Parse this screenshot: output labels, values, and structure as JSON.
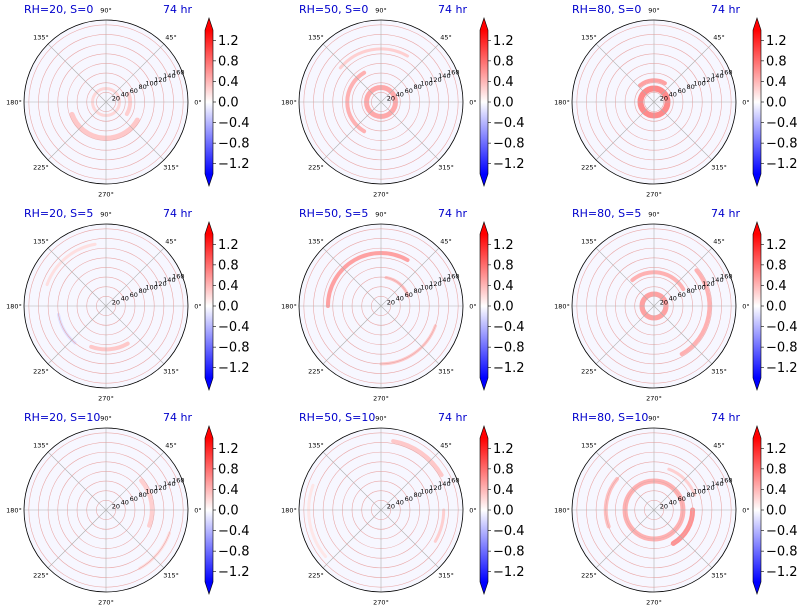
{
  "figure": {
    "colormap": "bwr",
    "colors": {
      "positive": "#ff0000",
      "negative": "#0000ff",
      "title": "#0000cc",
      "grid": "#b0b0b0",
      "frame": "#000000"
    }
  },
  "chart_data": [
    {
      "type": "heatmap",
      "projection": "polar",
      "title_left": "RH=20, S=0",
      "title_right": "74 hr",
      "theta_ticks": [
        "0°",
        "45°",
        "90°",
        "135°",
        "180°",
        "225°",
        "270°",
        "315°"
      ],
      "r_ticks": [
        "20",
        "40",
        "60",
        "80",
        "100",
        "120",
        "140",
        "160"
      ],
      "r_tick_values": [
        20,
        40,
        60,
        80,
        100,
        120,
        140,
        160
      ],
      "rlim": [
        0,
        170
      ],
      "colorbar": {
        "ticks": [
          "1.2",
          "0.8",
          "0.4",
          "0.0",
          "−0.4",
          "−0.8",
          "−1.2"
        ],
        "tick_values": [
          1.2,
          0.8,
          0.4,
          0.0,
          -0.4,
          -0.8,
          -1.2
        ],
        "clim": [
          -1.4,
          1.4
        ],
        "extend": "both"
      },
      "features": [
        {
          "theta_deg_start": 200,
          "theta_deg_end": 330,
          "r": 75,
          "value": 0.35,
          "width": 5
        },
        {
          "theta_deg_start": 330,
          "theta_deg_end": 380,
          "r": 50,
          "value": 0.3,
          "width": 4
        },
        {
          "theta_deg_start": 0,
          "theta_deg_end": 360,
          "r": 28,
          "value": 0.25,
          "width": 3
        }
      ]
    },
    {
      "type": "heatmap",
      "projection": "polar",
      "title_left": "RH=50, S=0",
      "title_right": "74 hr",
      "theta_ticks": [
        "0°",
        "45°",
        "90°",
        "135°",
        "180°",
        "225°",
        "270°",
        "315°"
      ],
      "r_ticks": [
        "20",
        "40",
        "60",
        "80",
        "100",
        "120",
        "140",
        "160"
      ],
      "r_tick_values": [
        20,
        40,
        60,
        80,
        100,
        120,
        140,
        160
      ],
      "rlim": [
        0,
        170
      ],
      "colorbar": {
        "ticks": [
          "1.2",
          "0.8",
          "0.4",
          "0.0",
          "−0.4",
          "−0.8",
          "−1.2"
        ],
        "tick_values": [
          1.2,
          0.8,
          0.4,
          0.0,
          -0.4,
          -0.8,
          -1.2
        ],
        "clim": [
          -1.4,
          1.4
        ],
        "extend": "both"
      },
      "features": [
        {
          "theta_deg_start": 0,
          "theta_deg_end": 360,
          "r": 30,
          "value": 0.55,
          "width": 5
        },
        {
          "theta_deg_start": 120,
          "theta_deg_end": 240,
          "r": 70,
          "value": 0.5,
          "width": 4
        },
        {
          "theta_deg_start": 60,
          "theta_deg_end": 140,
          "r": 110,
          "value": 0.3,
          "width": 3
        }
      ]
    },
    {
      "type": "heatmap",
      "projection": "polar",
      "title_left": "RH=80, S=0",
      "title_right": "74 hr",
      "theta_ticks": [
        "0°",
        "45°",
        "90°",
        "135°",
        "180°",
        "225°",
        "270°",
        "315°"
      ],
      "r_ticks": [
        "20",
        "40",
        "60",
        "80",
        "100",
        "120",
        "140",
        "160"
      ],
      "r_tick_values": [
        20,
        40,
        60,
        80,
        100,
        120,
        140,
        160
      ],
      "rlim": [
        0,
        170
      ],
      "colorbar": {
        "ticks": [
          "1.2",
          "0.8",
          "0.4",
          "0.0",
          "−0.4",
          "−0.8",
          "−1.2"
        ],
        "tick_values": [
          1.2,
          0.8,
          0.4,
          0.0,
          -0.4,
          -0.8,
          -1.2
        ],
        "clim": [
          -1.4,
          1.4
        ],
        "extend": "both"
      },
      "features": [
        {
          "theta_deg_start": 0,
          "theta_deg_end": 360,
          "r": 28,
          "value": 0.75,
          "width": 6
        },
        {
          "theta_deg_start": 60,
          "theta_deg_end": 130,
          "r": 45,
          "value": 0.6,
          "width": 4
        }
      ]
    },
    {
      "type": "heatmap",
      "projection": "polar",
      "title_left": "RH=20, S=5",
      "title_right": "74 hr",
      "theta_ticks": [
        "0°",
        "45°",
        "90°",
        "135°",
        "180°",
        "225°",
        "270°",
        "315°"
      ],
      "r_ticks": [
        "20",
        "40",
        "60",
        "80",
        "100",
        "120",
        "140",
        "160"
      ],
      "r_tick_values": [
        20,
        40,
        60,
        80,
        100,
        120,
        140,
        160
      ],
      "rlim": [
        0,
        170
      ],
      "colorbar": {
        "ticks": [
          "1.2",
          "0.8",
          "0.4",
          "0.0",
          "−0.4",
          "−0.8",
          "−1.2"
        ],
        "tick_values": [
          1.2,
          0.8,
          0.4,
          0.0,
          -0.4,
          -0.8,
          -1.2
        ],
        "clim": [
          -1.4,
          1.4
        ],
        "extend": "both"
      },
      "features": [
        {
          "theta_deg_start": 250,
          "theta_deg_end": 300,
          "r": 90,
          "value": 0.35,
          "width": 4
        },
        {
          "theta_deg_start": 100,
          "theta_deg_end": 160,
          "r": 130,
          "value": 0.2,
          "width": 3
        },
        {
          "theta_deg_start": 190,
          "theta_deg_end": 230,
          "r": 100,
          "value": -0.2,
          "width": 3
        }
      ]
    },
    {
      "type": "heatmap",
      "projection": "polar",
      "title_left": "RH=50, S=5",
      "title_right": "74 hr",
      "theta_ticks": [
        "0°",
        "45°",
        "90°",
        "135°",
        "180°",
        "225°",
        "270°",
        "315°"
      ],
      "r_ticks": [
        "20",
        "40",
        "60",
        "80",
        "100",
        "120",
        "140",
        "160"
      ],
      "r_tick_values": [
        20,
        40,
        60,
        80,
        100,
        120,
        140,
        160
      ],
      "rlim": [
        0,
        170
      ],
      "colorbar": {
        "ticks": [
          "1.2",
          "0.8",
          "0.4",
          "0.0",
          "−0.4",
          "−0.8",
          "−1.2"
        ],
        "tick_values": [
          1.2,
          0.8,
          0.4,
          0.0,
          -0.4,
          -0.8,
          -1.2
        ],
        "clim": [
          -1.4,
          1.4
        ],
        "extend": "both"
      },
      "features": [
        {
          "theta_deg_start": 60,
          "theta_deg_end": 180,
          "r": 110,
          "value": 0.6,
          "width": 4
        },
        {
          "theta_deg_start": 20,
          "theta_deg_end": 80,
          "r": 60,
          "value": 0.4,
          "width": 3
        },
        {
          "theta_deg_start": 270,
          "theta_deg_end": 340,
          "r": 120,
          "value": 0.35,
          "width": 3
        }
      ]
    },
    {
      "type": "heatmap",
      "projection": "polar",
      "title_left": "RH=80, S=5",
      "title_right": "74 hr",
      "theta_ticks": [
        "0°",
        "45°",
        "90°",
        "135°",
        "180°",
        "225°",
        "270°",
        "315°"
      ],
      "r_ticks": [
        "20",
        "40",
        "60",
        "80",
        "100",
        "120",
        "140",
        "160"
      ],
      "r_tick_values": [
        20,
        40,
        60,
        80,
        100,
        120,
        140,
        160
      ],
      "rlim": [
        0,
        170
      ],
      "colorbar": {
        "ticks": [
          "1.2",
          "0.8",
          "0.4",
          "0.0",
          "−0.4",
          "−0.8",
          "−1.2"
        ],
        "tick_values": [
          1.2,
          0.8,
          0.4,
          0.0,
          -0.4,
          -0.8,
          -1.2
        ],
        "clim": [
          -1.4,
          1.4
        ],
        "extend": "both"
      },
      "features": [
        {
          "theta_deg_start": 0,
          "theta_deg_end": 360,
          "r": 25,
          "value": 0.6,
          "width": 5
        },
        {
          "theta_deg_start": 30,
          "theta_deg_end": 130,
          "r": 70,
          "value": 0.5,
          "width": 4
        },
        {
          "theta_deg_start": 300,
          "theta_deg_end": 400,
          "r": 115,
          "value": 0.5,
          "width": 4
        }
      ]
    },
    {
      "type": "heatmap",
      "projection": "polar",
      "title_left": "RH=20, S=10",
      "title_right": "74 hr",
      "theta_ticks": [
        "0°",
        "45°",
        "90°",
        "135°",
        "180°",
        "225°",
        "270°",
        "315°"
      ],
      "r_ticks": [
        "20",
        "40",
        "60",
        "80",
        "100",
        "120",
        "140",
        "160"
      ],
      "r_tick_values": [
        20,
        40,
        60,
        80,
        100,
        120,
        140,
        160
      ],
      "rlim": [
        0,
        170
      ],
      "colorbar": {
        "ticks": [
          "1.2",
          "0.8",
          "0.4",
          "0.0",
          "−0.4",
          "−0.8",
          "−1.2"
        ],
        "tick_values": [
          1.2,
          0.8,
          0.4,
          0.0,
          -0.4,
          -0.8,
          -1.2
        ],
        "clim": [
          -1.4,
          1.4
        ],
        "extend": "both"
      },
      "features": [
        {
          "theta_deg_start": 340,
          "theta_deg_end": 400,
          "r": 95,
          "value": 0.3,
          "width": 4
        },
        {
          "theta_deg_start": 300,
          "theta_deg_end": 340,
          "r": 140,
          "value": 0.2,
          "width": 3
        }
      ]
    },
    {
      "type": "heatmap",
      "projection": "polar",
      "title_left": "RH=50, S=10",
      "title_right": "74 hr",
      "theta_ticks": [
        "0°",
        "45°",
        "90°",
        "135°",
        "180°",
        "225°",
        "270°",
        "315°"
      ],
      "r_ticks": [
        "20",
        "40",
        "60",
        "80",
        "100",
        "120",
        "140",
        "160"
      ],
      "r_tick_values": [
        20,
        40,
        60,
        80,
        100,
        120,
        140,
        160
      ],
      "rlim": [
        0,
        170
      ],
      "colorbar": {
        "ticks": [
          "1.2",
          "0.8",
          "0.4",
          "0.0",
          "−0.4",
          "−0.8",
          "−1.2"
        ],
        "tick_values": [
          1.2,
          0.8,
          0.4,
          0.0,
          -0.4,
          -0.8,
          -1.2
        ],
        "clim": [
          -1.4,
          1.4
        ],
        "extend": "both"
      },
      "features": [
        {
          "theta_deg_start": 30,
          "theta_deg_end": 80,
          "r": 145,
          "value": 0.35,
          "width": 4
        },
        {
          "theta_deg_start": 330,
          "theta_deg_end": 360,
          "r": 130,
          "value": 0.3,
          "width": 3
        },
        {
          "theta_deg_start": 160,
          "theta_deg_end": 220,
          "r": 150,
          "value": 0.15,
          "width": 3
        }
      ]
    },
    {
      "type": "heatmap",
      "projection": "polar",
      "title_left": "RH=80, S=10",
      "title_right": "74 hr",
      "theta_ticks": [
        "0°",
        "45°",
        "90°",
        "135°",
        "180°",
        "225°",
        "270°",
        "315°"
      ],
      "r_ticks": [
        "20",
        "40",
        "60",
        "80",
        "100",
        "120",
        "140",
        "160"
      ],
      "r_tick_values": [
        20,
        40,
        60,
        80,
        100,
        120,
        140,
        160
      ],
      "rlim": [
        0,
        170
      ],
      "colorbar": {
        "ticks": [
          "1.2",
          "0.8",
          "0.4",
          "0.0",
          "−0.4",
          "−0.8",
          "−1.2"
        ],
        "tick_values": [
          1.2,
          0.8,
          0.4,
          0.0,
          -0.4,
          -0.8,
          -1.2
        ],
        "clim": [
          -1.4,
          1.4
        ],
        "extend": "both"
      },
      "features": [
        {
          "theta_deg_start": 0,
          "theta_deg_end": 360,
          "r": 60,
          "value": 0.5,
          "width": 5
        },
        {
          "theta_deg_start": 300,
          "theta_deg_end": 360,
          "r": 80,
          "value": 0.7,
          "width": 5
        },
        {
          "theta_deg_start": 140,
          "theta_deg_end": 200,
          "r": 100,
          "value": 0.4,
          "width": 4
        },
        {
          "theta_deg_start": 20,
          "theta_deg_end": 70,
          "r": 90,
          "value": 0.3,
          "width": 3
        }
      ]
    }
  ]
}
